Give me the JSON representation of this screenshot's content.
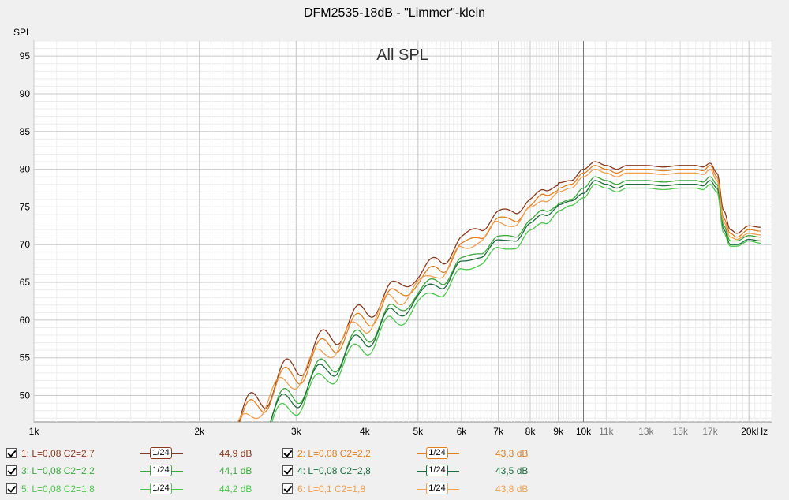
{
  "chart_data": {
    "type": "line",
    "title": "DFM2535-18dB - \"Limmer\"-klein",
    "subtitle": "All SPL",
    "ylabel": "SPL",
    "xlabel": "",
    "x_scale": "log",
    "xlim": [
      1000,
      22000
    ],
    "ylim": [
      46.5,
      97
    ],
    "grid": true,
    "y_ticks": [
      "50",
      "55",
      "60",
      "65",
      "70",
      "75",
      "80",
      "85",
      "90",
      "95"
    ],
    "y_tick_values": [
      50,
      55,
      60,
      65,
      70,
      75,
      80,
      85,
      90,
      95
    ],
    "x_ticks": [
      {
        "value": 1000,
        "label": "1k"
      },
      {
        "value": 2000,
        "label": "2k"
      },
      {
        "value": 3000,
        "label": "3k"
      },
      {
        "value": 4000,
        "label": "4k"
      },
      {
        "value": 5000,
        "label": "5k"
      },
      {
        "value": 6000,
        "label": "6k"
      },
      {
        "value": 7000,
        "label": "7k"
      },
      {
        "value": 8000,
        "label": "8k"
      },
      {
        "value": 9000,
        "label": "9k"
      },
      {
        "value": 10000,
        "label": "10k"
      },
      {
        "value": 11000,
        "label": "11k"
      },
      {
        "value": 13000,
        "label": "13k"
      },
      {
        "value": 15000,
        "label": "15k"
      },
      {
        "value": 17000,
        "label": "17k"
      },
      {
        "value": 20000,
        "label": "20kHz"
      }
    ],
    "x": [
      2300,
      2600,
      3000,
      3500,
      4000,
      4500,
      5000,
      5500,
      6000,
      6500,
      7000,
      7500,
      8000,
      8500,
      9000,
      9500,
      10000,
      10500,
      11000,
      11500,
      12000,
      13000,
      14000,
      15000,
      16000,
      16500,
      17000,
      17500,
      18000,
      18500,
      19000,
      20000,
      21000
    ],
    "series": [
      {
        "name": "1: L=0,08 C2=2,7",
        "color": "#8b3a1e",
        "values": [
          46,
          50,
          54,
          58,
          61,
          64,
          66,
          68,
          70.5,
          72.5,
          74,
          74.5,
          76,
          77,
          78.2,
          78.5,
          80,
          81,
          80.5,
          80,
          80.5,
          80.5,
          80.3,
          80.5,
          80.5,
          80.3,
          80.8,
          79.5,
          74.5,
          72,
          71.5,
          72.5,
          72.3
        ]
      },
      {
        "name": "2: L=0,08 C2=2,2",
        "color": "#e08020",
        "values": [
          45,
          49.5,
          53,
          57,
          60,
          63,
          65,
          67,
          69.5,
          71.5,
          73,
          73.5,
          75,
          76.5,
          77.5,
          78,
          79.5,
          80.5,
          80,
          79.5,
          80,
          80,
          79.8,
          80,
          80,
          79.8,
          80.5,
          79,
          73.5,
          71.5,
          71,
          72,
          71.8
        ]
      },
      {
        "name": "3: L=0,08 C2=2,2",
        "color": "#3aa83a",
        "values": [
          42,
          46.5,
          50.5,
          54.5,
          58,
          61,
          63.5,
          65.5,
          67.5,
          69.5,
          70.5,
          71.5,
          73,
          74.5,
          75.5,
          76,
          77.5,
          79,
          78.5,
          78,
          78.5,
          78.5,
          78.3,
          78.5,
          78.5,
          78.3,
          79,
          78,
          72.5,
          70.5,
          70.5,
          71.2,
          71
        ]
      },
      {
        "name": "4: L=0,08 C2=2,8",
        "color": "#1e6e3e",
        "values": [
          41.5,
          46,
          50,
          54,
          57.5,
          60.5,
          63,
          65,
          67,
          69,
          70,
          71,
          72.5,
          74,
          75.3,
          75.8,
          76.8,
          78.5,
          78,
          77.5,
          78,
          78,
          77.8,
          78,
          78,
          77.8,
          78.5,
          77.5,
          72,
          70,
          70,
          70.7,
          70.5
        ]
      },
      {
        "name": "5: L=0,08 C2=1,8",
        "color": "#4cc84c",
        "values": [
          40.5,
          45,
          49,
          53,
          56.5,
          59.5,
          62,
          64,
          66,
          68,
          69,
          70,
          71.5,
          73,
          74.5,
          75.2,
          76.2,
          78,
          77.5,
          77,
          77.5,
          77.5,
          77.3,
          77.5,
          77.5,
          77.3,
          78,
          77,
          71.5,
          69.8,
          69.8,
          70.5,
          70.2
        ]
      },
      {
        "name": "6: L=0,1 C2=1,8",
        "color": "#f0a050",
        "values": [
          44.5,
          49,
          52.5,
          56.5,
          59.5,
          62.5,
          64.5,
          66.5,
          69,
          71,
          72.5,
          73,
          74.5,
          76,
          77,
          77.5,
          79,
          80,
          79.5,
          79,
          79.5,
          79.5,
          79.3,
          79.5,
          79.5,
          79.3,
          80,
          78.5,
          73,
          71,
          70.7,
          71.5,
          71.3
        ]
      }
    ],
    "legend": [
      {
        "name": "1: L=0,08 C2=2,7",
        "smoothing": "1/24",
        "value": "44,9 dB",
        "color": "#8b3a1e"
      },
      {
        "name": "2: L=0,08 C2=2,2",
        "smoothing": "1/24",
        "value": "43,3 dB",
        "color": "#e08020"
      },
      {
        "name": "3: L=0,08 C2=2,2",
        "smoothing": "1/24",
        "value": "44,1 dB",
        "color": "#3aa83a"
      },
      {
        "name": "4: L=0,08 C2=2,8",
        "smoothing": "1/24",
        "value": "43,5 dB",
        "color": "#1e6e3e"
      },
      {
        "name": "5: L=0,08 C2=1,8",
        "smoothing": "1/24",
        "value": "44,2 dB",
        "color": "#4cc84c"
      },
      {
        "name": "6: L=0,1 C2=1,8",
        "smoothing": "1/24",
        "value": "43,8 dB",
        "color": "#f0a050"
      }
    ]
  }
}
